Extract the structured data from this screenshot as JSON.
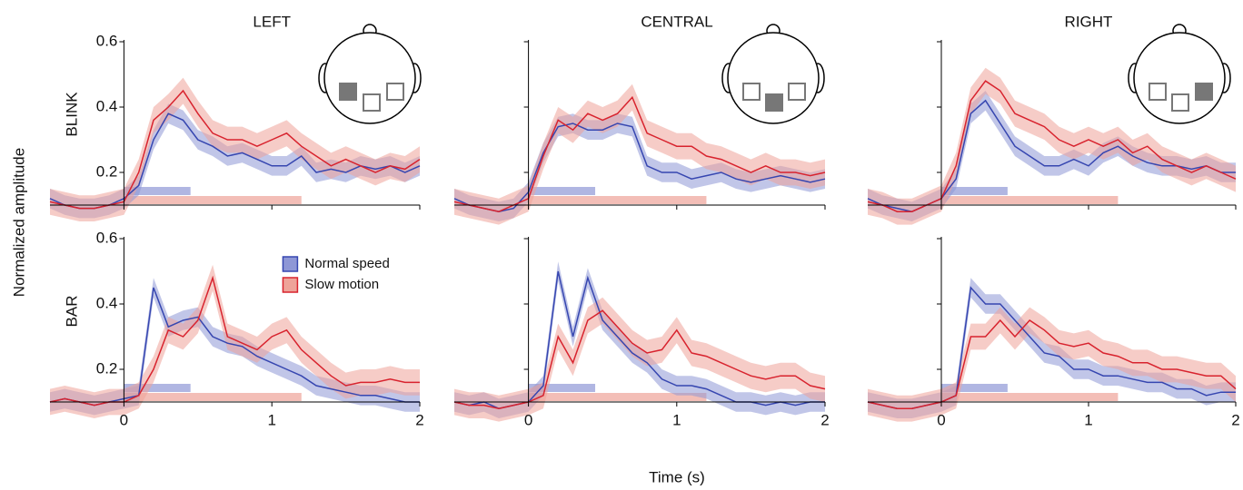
{
  "figure": {
    "ylabel": "Normalized amplitude",
    "xlabel": "Time (s)"
  },
  "chart_data": [
    {
      "type": "line",
      "title": "LEFT",
      "ylabel": "BLINK",
      "x": [
        -0.5,
        -0.4,
        -0.3,
        -0.2,
        -0.1,
        0,
        0.1,
        0.2,
        0.3,
        0.4,
        0.5,
        0.6,
        0.7,
        0.8,
        0.9,
        1,
        1.1,
        1.2,
        1.3,
        1.4,
        1.5,
        1.6,
        1.7,
        1.8,
        1.9,
        2
      ],
      "xlim": [
        -0.5,
        2
      ],
      "ylim": [
        0.1,
        0.6
      ],
      "xticks": [
        0,
        1,
        2
      ],
      "yticks": [
        0.2,
        0.4,
        0.6
      ],
      "series": [
        {
          "color": "#3646b0",
          "band_color": "#8e97d6",
          "error": 0.03,
          "bar": [
            0,
            0.45
          ],
          "values": [
            0.12,
            0.1,
            0.09,
            0.09,
            0.1,
            0.12,
            0.16,
            0.3,
            0.38,
            0.36,
            0.3,
            0.28,
            0.25,
            0.26,
            0.24,
            0.22,
            0.22,
            0.25,
            0.2,
            0.21,
            0.2,
            0.22,
            0.21,
            0.22,
            0.2,
            0.22
          ]
        },
        {
          "color": "#d8232e",
          "band_color": "#eea399",
          "error": 0.04,
          "bar": [
            0,
            1.2
          ],
          "values": [
            0.11,
            0.1,
            0.09,
            0.09,
            0.1,
            0.11,
            0.2,
            0.36,
            0.4,
            0.45,
            0.38,
            0.32,
            0.3,
            0.3,
            0.28,
            0.3,
            0.32,
            0.28,
            0.25,
            0.22,
            0.24,
            0.22,
            0.2,
            0.22,
            0.21,
            0.24
          ]
        }
      ]
    },
    {
      "type": "line",
      "title": "CENTRAL",
      "x": [
        -0.5,
        -0.4,
        -0.3,
        -0.2,
        -0.1,
        0,
        0.1,
        0.2,
        0.3,
        0.4,
        0.5,
        0.6,
        0.7,
        0.8,
        0.9,
        1,
        1.1,
        1.2,
        1.3,
        1.4,
        1.5,
        1.6,
        1.7,
        1.8,
        1.9,
        2
      ],
      "xlim": [
        -0.5,
        2
      ],
      "ylim": [
        0.1,
        0.6
      ],
      "xticks": [
        0,
        1,
        2
      ],
      "yticks": [
        0.2,
        0.4,
        0.6
      ],
      "series": [
        {
          "color": "#3646b0",
          "band_color": "#8e97d6",
          "error": 0.03,
          "bar": [
            0,
            0.45
          ],
          "values": [
            0.12,
            0.1,
            0.09,
            0.08,
            0.09,
            0.14,
            0.26,
            0.34,
            0.35,
            0.33,
            0.33,
            0.35,
            0.34,
            0.22,
            0.2,
            0.2,
            0.18,
            0.19,
            0.2,
            0.18,
            0.17,
            0.18,
            0.19,
            0.18,
            0.17,
            0.18
          ]
        },
        {
          "color": "#d8232e",
          "band_color": "#eea399",
          "error": 0.04,
          "bar": [
            0,
            1.2
          ],
          "values": [
            0.11,
            0.1,
            0.09,
            0.08,
            0.1,
            0.12,
            0.25,
            0.36,
            0.33,
            0.38,
            0.36,
            0.38,
            0.43,
            0.32,
            0.3,
            0.28,
            0.28,
            0.25,
            0.24,
            0.22,
            0.2,
            0.22,
            0.2,
            0.2,
            0.19,
            0.2
          ]
        }
      ]
    },
    {
      "type": "line",
      "title": "RIGHT",
      "x": [
        -0.5,
        -0.4,
        -0.3,
        -0.2,
        -0.1,
        0,
        0.1,
        0.2,
        0.3,
        0.4,
        0.5,
        0.6,
        0.7,
        0.8,
        0.9,
        1,
        1.1,
        1.2,
        1.3,
        1.4,
        1.5,
        1.6,
        1.7,
        1.8,
        1.9,
        2
      ],
      "xlim": [
        -0.5,
        2
      ],
      "ylim": [
        0.1,
        0.6
      ],
      "xticks": [
        0,
        1,
        2
      ],
      "yticks": [
        0.2,
        0.4,
        0.6
      ],
      "series": [
        {
          "color": "#3646b0",
          "band_color": "#8e97d6",
          "error": 0.03,
          "bar": [
            0,
            0.45
          ],
          "values": [
            0.12,
            0.1,
            0.09,
            0.08,
            0.1,
            0.12,
            0.18,
            0.38,
            0.42,
            0.35,
            0.28,
            0.25,
            0.22,
            0.22,
            0.24,
            0.22,
            0.26,
            0.28,
            0.25,
            0.23,
            0.22,
            0.22,
            0.21,
            0.22,
            0.2,
            0.2
          ]
        },
        {
          "color": "#d8232e",
          "band_color": "#eea399",
          "error": 0.04,
          "bar": [
            0,
            1.2
          ],
          "values": [
            0.11,
            0.1,
            0.08,
            0.08,
            0.1,
            0.12,
            0.22,
            0.42,
            0.48,
            0.45,
            0.38,
            0.36,
            0.34,
            0.3,
            0.28,
            0.3,
            0.28,
            0.3,
            0.26,
            0.28,
            0.24,
            0.22,
            0.2,
            0.22,
            0.2,
            0.18
          ]
        }
      ]
    },
    {
      "type": "line",
      "ylabel": "BAR",
      "legend": "top-right",
      "x": [
        -0.5,
        -0.4,
        -0.3,
        -0.2,
        -0.1,
        0,
        0.1,
        0.2,
        0.3,
        0.4,
        0.5,
        0.6,
        0.7,
        0.8,
        0.9,
        1,
        1.1,
        1.2,
        1.3,
        1.4,
        1.5,
        1.6,
        1.7,
        1.8,
        1.9,
        2
      ],
      "xlim": [
        -0.5,
        2
      ],
      "ylim": [
        0.1,
        0.6
      ],
      "xticks": [
        0,
        1,
        2
      ],
      "yticks": [
        0.2,
        0.4,
        0.6
      ],
      "series": [
        {
          "name": "Normal speed",
          "color": "#3646b0",
          "band_color": "#8e97d6",
          "error": 0.03,
          "bar": [
            0,
            0.45
          ],
          "values": [
            0.1,
            0.11,
            0.1,
            0.09,
            0.1,
            0.11,
            0.12,
            0.45,
            0.33,
            0.35,
            0.36,
            0.3,
            0.28,
            0.27,
            0.24,
            0.22,
            0.2,
            0.18,
            0.15,
            0.14,
            0.13,
            0.12,
            0.12,
            0.11,
            0.1,
            0.1
          ]
        },
        {
          "name": "Slow motion",
          "color": "#d8232e",
          "band_color": "#eea399",
          "error": 0.04,
          "bar": [
            0,
            1.2
          ],
          "values": [
            0.1,
            0.11,
            0.1,
            0.09,
            0.1,
            0.1,
            0.12,
            0.2,
            0.32,
            0.3,
            0.35,
            0.48,
            0.3,
            0.28,
            0.26,
            0.3,
            0.32,
            0.26,
            0.22,
            0.18,
            0.15,
            0.16,
            0.16,
            0.17,
            0.16,
            0.16
          ]
        }
      ]
    },
    {
      "type": "line",
      "x": [
        -0.5,
        -0.4,
        -0.3,
        -0.2,
        -0.1,
        0,
        0.1,
        0.2,
        0.3,
        0.4,
        0.5,
        0.6,
        0.7,
        0.8,
        0.9,
        1,
        1.1,
        1.2,
        1.3,
        1.4,
        1.5,
        1.6,
        1.7,
        1.8,
        1.9,
        2
      ],
      "xlim": [
        -0.5,
        2
      ],
      "ylim": [
        0.1,
        0.6
      ],
      "xticks": [
        0,
        1,
        2
      ],
      "yticks": [
        0.2,
        0.4,
        0.6
      ],
      "series": [
        {
          "color": "#3646b0",
          "band_color": "#8e97d6",
          "error": 0.03,
          "bar": [
            0,
            0.45
          ],
          "values": [
            0.1,
            0.09,
            0.1,
            0.08,
            0.09,
            0.1,
            0.15,
            0.5,
            0.3,
            0.48,
            0.35,
            0.3,
            0.25,
            0.22,
            0.17,
            0.15,
            0.15,
            0.14,
            0.12,
            0.1,
            0.1,
            0.09,
            0.1,
            0.09,
            0.1,
            0.1
          ]
        },
        {
          "color": "#d8232e",
          "band_color": "#eea399",
          "error": 0.04,
          "bar": [
            0,
            1.2
          ],
          "values": [
            0.1,
            0.09,
            0.09,
            0.08,
            0.09,
            0.1,
            0.12,
            0.3,
            0.22,
            0.35,
            0.38,
            0.33,
            0.28,
            0.25,
            0.26,
            0.32,
            0.25,
            0.24,
            0.22,
            0.2,
            0.18,
            0.17,
            0.18,
            0.18,
            0.15,
            0.14
          ]
        }
      ]
    },
    {
      "type": "line",
      "x": [
        -0.5,
        -0.4,
        -0.3,
        -0.2,
        -0.1,
        0,
        0.1,
        0.2,
        0.3,
        0.4,
        0.5,
        0.6,
        0.7,
        0.8,
        0.9,
        1,
        1.1,
        1.2,
        1.3,
        1.4,
        1.5,
        1.6,
        1.7,
        1.8,
        1.9,
        2
      ],
      "xlim": [
        -0.5,
        2
      ],
      "ylim": [
        0.1,
        0.6
      ],
      "xticks": [
        0,
        1,
        2
      ],
      "yticks": [
        0.2,
        0.4,
        0.6
      ],
      "series": [
        {
          "color": "#3646b0",
          "band_color": "#8e97d6",
          "error": 0.03,
          "bar": [
            0,
            0.45
          ],
          "values": [
            0.1,
            0.09,
            0.08,
            0.08,
            0.09,
            0.1,
            0.12,
            0.45,
            0.4,
            0.4,
            0.35,
            0.3,
            0.25,
            0.24,
            0.2,
            0.2,
            0.18,
            0.18,
            0.17,
            0.16,
            0.16,
            0.14,
            0.14,
            0.12,
            0.13,
            0.13
          ]
        },
        {
          "color": "#d8232e",
          "band_color": "#eea399",
          "error": 0.04,
          "bar": [
            0,
            1.2
          ],
          "values": [
            0.1,
            0.09,
            0.08,
            0.08,
            0.09,
            0.1,
            0.12,
            0.3,
            0.3,
            0.35,
            0.3,
            0.35,
            0.32,
            0.28,
            0.27,
            0.28,
            0.25,
            0.24,
            0.22,
            0.22,
            0.2,
            0.2,
            0.19,
            0.18,
            0.18,
            0.14
          ]
        }
      ]
    }
  ]
}
